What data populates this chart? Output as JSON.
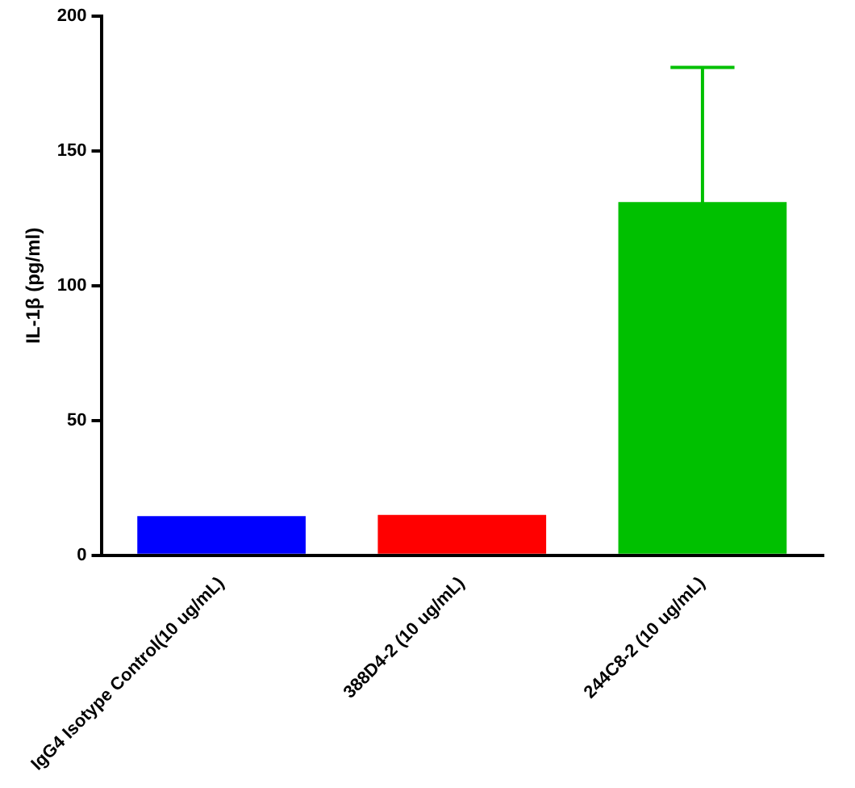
{
  "chart_data": {
    "type": "bar",
    "ylabel": "IL-1β (pg/ml)",
    "categories": [
      "IgG4 Isotype Control(10 ug/mL)",
      "388D4-2 (10 ug/mL)",
      "244C8-2 (10 ug/mL)"
    ],
    "values": [
      14.5,
      15,
      131
    ],
    "colors": [
      "#0000ff",
      "#ff0000",
      "#00c000"
    ],
    "errors": [
      null,
      null,
      50
    ],
    "ylim": [
      0,
      200
    ],
    "yticks": [
      0,
      50,
      100,
      150,
      200
    ],
    "grid": false
  }
}
